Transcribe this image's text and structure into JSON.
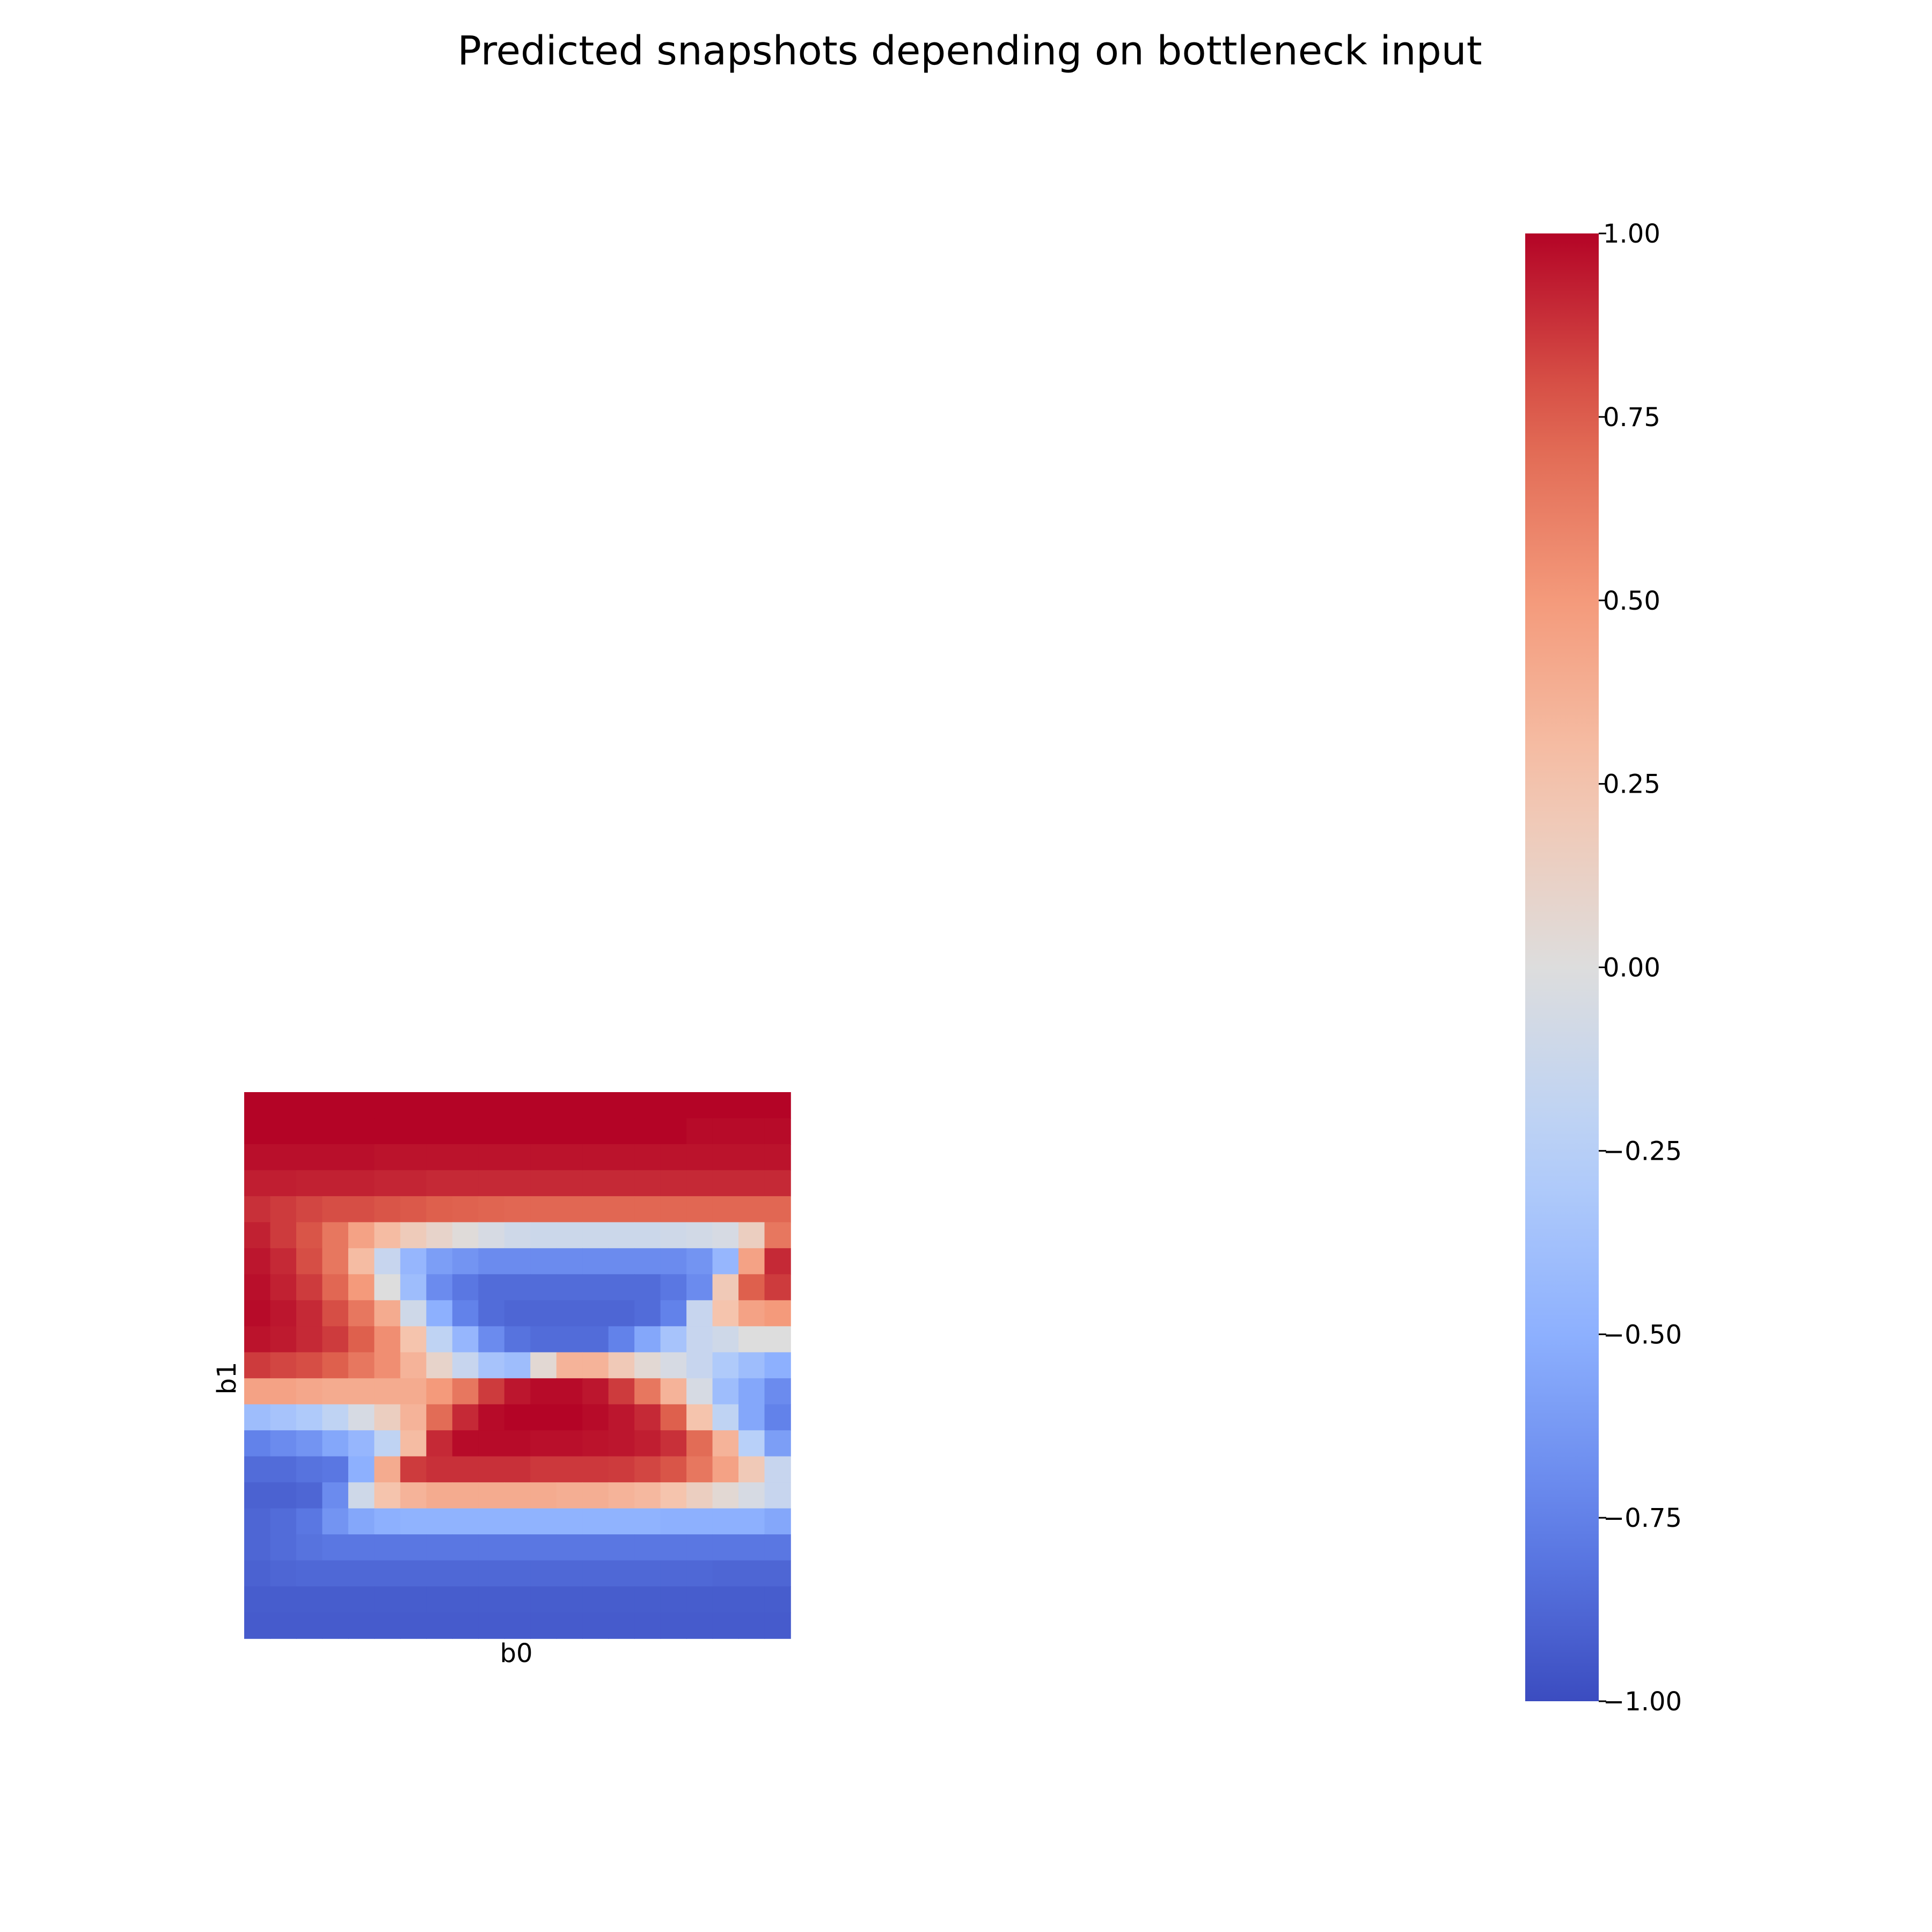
{
  "chart_data": {
    "type": "heatmap",
    "title": "Predicted snapshots depending on bottleneck input",
    "xlabel": "b0",
    "ylabel": "b1",
    "rows": 21,
    "cols": 21,
    "colormap": "coolwarm",
    "colorbar": {
      "vmin": -1.0,
      "vmax": 1.0,
      "ticks": [
        "1.00",
        "0.75",
        "0.50",
        "0.25",
        "0.00",
        "−0.25",
        "−0.50",
        "−0.75",
        "−1.00"
      ],
      "tick_values": [
        1.0,
        0.75,
        0.5,
        0.25,
        0.0,
        -0.25,
        -0.5,
        -0.75,
        -1.0
      ]
    },
    "values": [
      [
        1.0,
        1.0,
        1.0,
        1.0,
        1.0,
        1.0,
        1.0,
        1.0,
        1.0,
        1.0,
        1.0,
        1.0,
        1.0,
        1.0,
        1.0,
        1.0,
        1.0,
        1.0,
        1.0,
        1.0,
        1.0
      ],
      [
        1.0,
        1.0,
        1.0,
        1.0,
        1.0,
        1.0,
        1.0,
        1.0,
        1.0,
        1.0,
        1.0,
        1.0,
        1.0,
        1.0,
        1.0,
        1.0,
        1.0,
        0.98,
        0.98,
        0.98,
        0.98
      ],
      [
        0.97,
        0.97,
        0.97,
        0.97,
        0.97,
        0.96,
        0.96,
        0.96,
        0.96,
        0.96,
        0.96,
        0.96,
        0.96,
        0.96,
        0.96,
        0.96,
        0.96,
        0.96,
        0.96,
        0.96,
        0.96
      ],
      [
        0.93,
        0.93,
        0.92,
        0.92,
        0.92,
        0.91,
        0.91,
        0.9,
        0.9,
        0.9,
        0.9,
        0.9,
        0.9,
        0.9,
        0.9,
        0.9,
        0.9,
        0.9,
        0.9,
        0.9,
        0.9
      ],
      [
        0.88,
        0.85,
        0.82,
        0.8,
        0.8,
        0.78,
        0.77,
        0.75,
        0.74,
        0.73,
        0.72,
        0.72,
        0.72,
        0.72,
        0.72,
        0.72,
        0.72,
        0.72,
        0.72,
        0.72,
        0.72
      ],
      [
        0.92,
        0.85,
        0.78,
        0.65,
        0.45,
        0.3,
        0.18,
        0.1,
        0.02,
        -0.05,
        -0.1,
        -0.12,
        -0.12,
        -0.12,
        -0.12,
        -0.12,
        -0.1,
        -0.08,
        -0.05,
        0.15,
        0.65
      ],
      [
        0.95,
        0.9,
        0.8,
        0.65,
        0.3,
        -0.15,
        -0.45,
        -0.6,
        -0.65,
        -0.7,
        -0.7,
        -0.7,
        -0.7,
        -0.7,
        -0.7,
        -0.7,
        -0.7,
        -0.65,
        -0.45,
        0.45,
        0.9
      ],
      [
        0.97,
        0.92,
        0.85,
        0.72,
        0.5,
        0.0,
        -0.4,
        -0.7,
        -0.8,
        -0.85,
        -0.85,
        -0.85,
        -0.85,
        -0.85,
        -0.85,
        -0.85,
        -0.8,
        -0.7,
        0.2,
        0.75,
        0.85
      ],
      [
        0.98,
        0.95,
        0.9,
        0.8,
        0.65,
        0.4,
        -0.1,
        -0.5,
        -0.75,
        -0.85,
        -0.88,
        -0.88,
        -0.88,
        -0.88,
        -0.88,
        -0.85,
        -0.75,
        -0.15,
        0.25,
        0.45,
        0.5
      ],
      [
        0.96,
        0.94,
        0.9,
        0.85,
        0.75,
        0.55,
        0.25,
        -0.2,
        -0.45,
        -0.7,
        -0.82,
        -0.85,
        -0.85,
        -0.85,
        -0.75,
        -0.55,
        -0.35,
        -0.15,
        -0.1,
        0.0,
        0.0
      ],
      [
        0.85,
        0.82,
        0.8,
        0.75,
        0.65,
        0.55,
        0.35,
        0.1,
        -0.15,
        -0.35,
        -0.4,
        0.05,
        0.35,
        0.35,
        0.2,
        0.05,
        -0.05,
        -0.15,
        -0.3,
        -0.4,
        -0.5
      ],
      [
        0.45,
        0.45,
        0.42,
        0.4,
        0.4,
        0.4,
        0.4,
        0.5,
        0.65,
        0.85,
        0.95,
        0.98,
        0.98,
        0.95,
        0.85,
        0.65,
        0.35,
        -0.05,
        -0.4,
        -0.55,
        -0.7
      ],
      [
        -0.4,
        -0.35,
        -0.3,
        -0.2,
        -0.05,
        0.15,
        0.35,
        0.7,
        0.9,
        0.98,
        1.0,
        1.0,
        1.0,
        0.98,
        0.95,
        0.9,
        0.75,
        0.25,
        -0.2,
        -0.55,
        -0.75
      ],
      [
        -0.75,
        -0.7,
        -0.65,
        -0.55,
        -0.45,
        -0.2,
        0.3,
        0.9,
        0.98,
        0.98,
        0.98,
        0.97,
        0.97,
        0.96,
        0.95,
        0.93,
        0.88,
        0.7,
        0.35,
        -0.25,
        -0.6
      ],
      [
        -0.85,
        -0.85,
        -0.82,
        -0.8,
        -0.5,
        0.4,
        0.85,
        0.88,
        0.88,
        0.88,
        0.88,
        0.86,
        0.86,
        0.86,
        0.85,
        0.82,
        0.78,
        0.65,
        0.45,
        0.2,
        -0.15
      ],
      [
        -0.9,
        -0.9,
        -0.88,
        -0.7,
        -0.1,
        0.25,
        0.35,
        0.4,
        0.4,
        0.4,
        0.4,
        0.4,
        0.38,
        0.38,
        0.35,
        0.32,
        0.25,
        0.15,
        0.05,
        -0.05,
        -0.15
      ],
      [
        -0.88,
        -0.85,
        -0.8,
        -0.65,
        -0.55,
        -0.5,
        -0.48,
        -0.48,
        -0.48,
        -0.48,
        -0.48,
        -0.48,
        -0.48,
        -0.48,
        -0.48,
        -0.48,
        -0.5,
        -0.5,
        -0.5,
        -0.5,
        -0.55
      ],
      [
        -0.88,
        -0.85,
        -0.82,
        -0.8,
        -0.8,
        -0.8,
        -0.8,
        -0.8,
        -0.8,
        -0.8,
        -0.8,
        -0.8,
        -0.8,
        -0.8,
        -0.8,
        -0.8,
        -0.8,
        -0.8,
        -0.8,
        -0.8,
        -0.8
      ],
      [
        -0.9,
        -0.88,
        -0.87,
        -0.87,
        -0.87,
        -0.87,
        -0.87,
        -0.87,
        -0.87,
        -0.87,
        -0.87,
        -0.87,
        -0.87,
        -0.87,
        -0.87,
        -0.87,
        -0.87,
        -0.87,
        -0.88,
        -0.88,
        -0.88
      ],
      [
        -0.92,
        -0.92,
        -0.92,
        -0.92,
        -0.92,
        -0.92,
        -0.92,
        -0.92,
        -0.92,
        -0.92,
        -0.92,
        -0.92,
        -0.92,
        -0.92,
        -0.92,
        -0.92,
        -0.92,
        -0.92,
        -0.92,
        -0.92,
        -0.92
      ],
      [
        -0.93,
        -0.93,
        -0.93,
        -0.93,
        -0.93,
        -0.93,
        -0.93,
        -0.93,
        -0.93,
        -0.93,
        -0.93,
        -0.93,
        -0.93,
        -0.93,
        -0.93,
        -0.93,
        -0.93,
        -0.93,
        -0.93,
        -0.93,
        -0.93
      ]
    ]
  }
}
